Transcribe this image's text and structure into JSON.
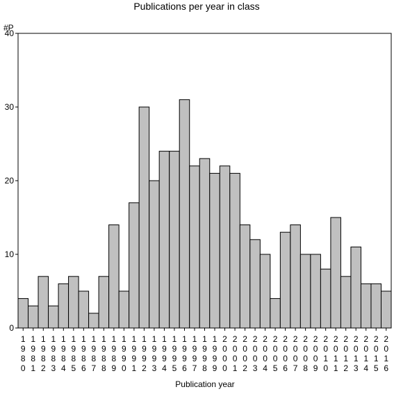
{
  "chart_data": {
    "type": "bar",
    "title": "Publications per year in class",
    "ylabel": "#P",
    "xlabel": "Publication year",
    "ylim": [
      0,
      40
    ],
    "yticks": [
      0,
      10,
      20,
      30,
      40
    ],
    "grid": false,
    "legend": "none",
    "bar_color": "#c0c0c0",
    "categories": [
      "1980",
      "1981",
      "1982",
      "1983",
      "1984",
      "1985",
      "1986",
      "1987",
      "1988",
      "1989",
      "1990",
      "1991",
      "1992",
      "1993",
      "1994",
      "1995",
      "1996",
      "1997",
      "1998",
      "1999",
      "2000",
      "2001",
      "2002",
      "2003",
      "2004",
      "2005",
      "2006",
      "2007",
      "2008",
      "2009",
      "2010",
      "2011",
      "2012",
      "2013",
      "2014",
      "2015",
      "2016"
    ],
    "values": [
      4,
      3,
      7,
      3,
      6,
      7,
      5,
      2,
      7,
      14,
      5,
      17,
      30,
      20,
      24,
      24,
      31,
      22,
      23,
      21,
      22,
      21,
      14,
      12,
      10,
      4,
      13,
      14,
      10,
      10,
      8,
      15,
      7,
      11,
      6,
      6,
      5
    ]
  }
}
